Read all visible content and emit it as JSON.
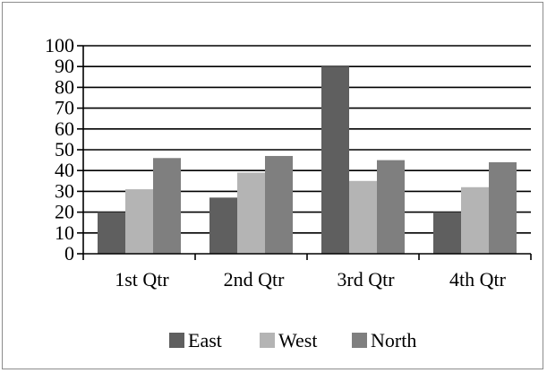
{
  "chart_data": {
    "type": "bar",
    "categories": [
      "1st Qtr",
      "2nd Qtr",
      "3rd Qtr",
      "4th Qtr"
    ],
    "series": [
      {
        "name": "East",
        "values": [
          20,
          27,
          90,
          20
        ],
        "color": "#5f5f5f"
      },
      {
        "name": "West",
        "values": [
          31,
          39,
          35,
          32
        ],
        "color": "#b4b4b4"
      },
      {
        "name": "North",
        "values": [
          46,
          47,
          45,
          44
        ],
        "color": "#7f7f7f"
      }
    ],
    "yticks": [
      "0",
      "10",
      "20",
      "30",
      "40",
      "50",
      "60",
      "70",
      "80",
      "90",
      "100"
    ],
    "ylim": [
      0,
      100
    ],
    "grid": true,
    "legend_position": "bottom",
    "title": "",
    "xlabel": "",
    "ylabel": ""
  }
}
